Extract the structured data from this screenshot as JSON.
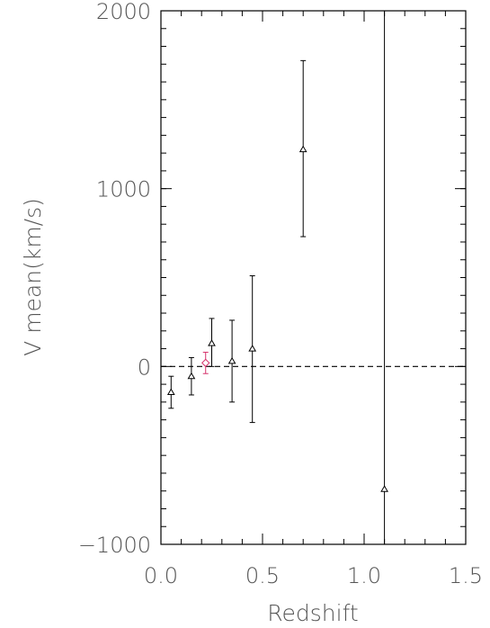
{
  "chart_data": {
    "type": "scatter",
    "title": "",
    "xlabel": "Redshift",
    "ylabel": "V mean(km/s)",
    "xlim": [
      0.0,
      1.5
    ],
    "ylim": [
      -1000,
      2000
    ],
    "x_ticks": [
      0.0,
      0.5,
      1.0,
      1.5
    ],
    "x_tick_labels": [
      "0.0",
      "0.5",
      "1.0",
      "1.5"
    ],
    "y_ticks": [
      -1000,
      0,
      1000,
      2000
    ],
    "y_tick_labels": [
      "−1000",
      "0",
      "1000",
      "2000"
    ],
    "reference_line": {
      "y": 0,
      "style": "dashed"
    },
    "series": [
      {
        "marker": "triangle",
        "color": "#000000",
        "points": [
          {
            "x": 0.05,
            "y": -145,
            "err_low": -235,
            "err_high": -55
          },
          {
            "x": 0.15,
            "y": -55,
            "err_low": -160,
            "err_high": 50
          },
          {
            "x": 0.25,
            "y": 130,
            "err_low": 0,
            "err_high": 270
          },
          {
            "x": 0.35,
            "y": 30,
            "err_low": -200,
            "err_high": 260
          },
          {
            "x": 0.45,
            "y": 100,
            "err_low": -315,
            "err_high": 510
          },
          {
            "x": 0.7,
            "y": 1220,
            "err_low": 730,
            "err_high": 1720
          },
          {
            "x": 1.1,
            "y": -690,
            "err_low": -1000,
            "err_high": 2000
          }
        ]
      },
      {
        "marker": "diamond",
        "color": "#d6336c",
        "points": [
          {
            "x": 0.22,
            "y": 20,
            "err_low": -40,
            "err_high": 80
          }
        ]
      }
    ],
    "grid": false
  }
}
